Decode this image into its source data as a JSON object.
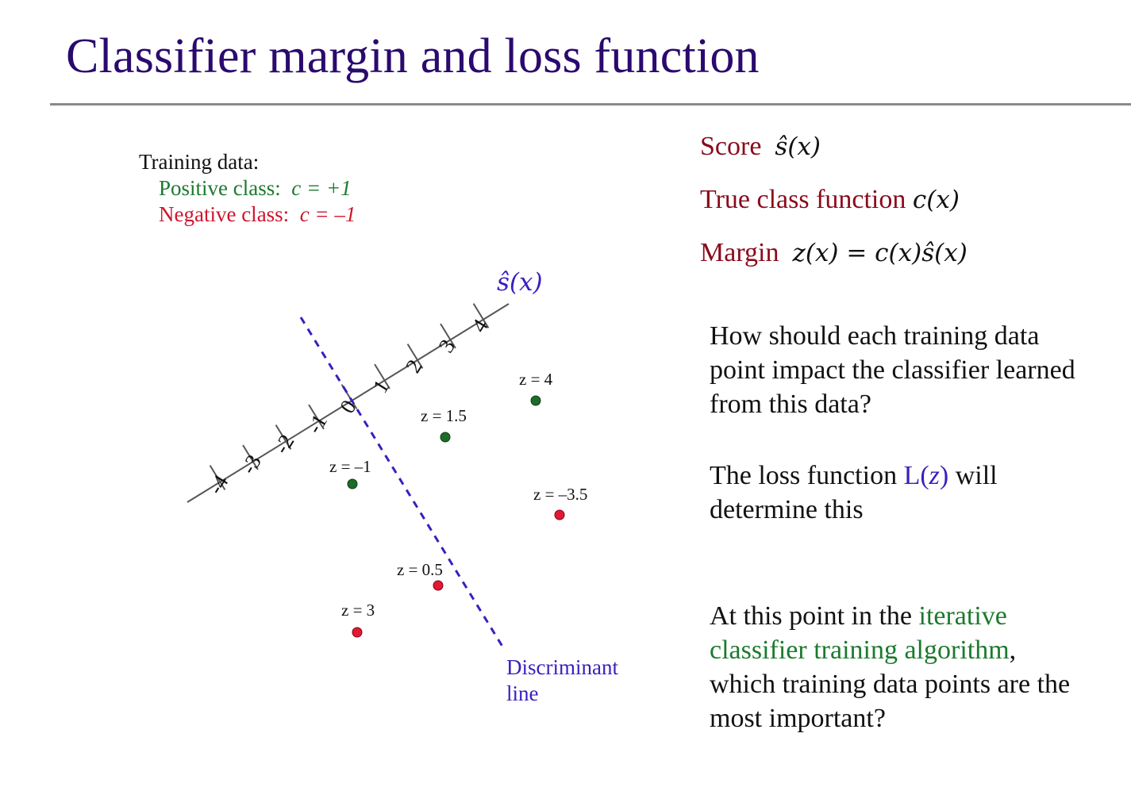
{
  "slide": {
    "title": "Classifier margin and loss function"
  },
  "legend": {
    "heading": "Training data:",
    "positive_label": "Positive class:",
    "positive_expr": "c = +1",
    "negative_label": "Negative class:",
    "negative_expr": "c = –1"
  },
  "definitions": {
    "score_label": "Score",
    "score_expr": "ŝ(x)",
    "true_class_label": "True class function",
    "true_class_expr": "c(x)",
    "margin_label": "Margin",
    "margin_expr": "z(x) = c(x)ŝ(x)"
  },
  "paragraphs": {
    "p1": [
      "How should each training data",
      "point impact the classifier learned",
      "from this data?"
    ],
    "p2_before": "The loss function ",
    "p2_L": "L(",
    "p2_z": "z",
    "p2_close": ")",
    "p2_after": " will",
    "p2_line2": "determine this",
    "p3_start": "At this point in the ",
    "p3_green_1": "iterative",
    "p3_green_2": "classifier training algorithm",
    "p3_comma": ",",
    "p3_line3": "which training data points are the",
    "p3_line4": "most important?"
  },
  "diagram": {
    "axis_label": "ŝ(x)",
    "axis_ticks": [
      "-4",
      "-3",
      "-2",
      "-1",
      "0",
      "1",
      "2",
      "3",
      "4"
    ],
    "discriminant_label": [
      "Discriminant",
      "line"
    ],
    "colors": {
      "positive": "#1e6b2a",
      "negative": "#e01a34",
      "dashed": "#3a1fbf"
    },
    "points": [
      {
        "class": "positive",
        "label": "z = 4"
      },
      {
        "class": "positive",
        "label": "z = 1.5"
      },
      {
        "class": "positive",
        "label": "z = –1"
      },
      {
        "class": "negative",
        "label": "z = –3.5"
      },
      {
        "class": "negative",
        "label": "z = 0.5"
      },
      {
        "class": "negative",
        "label": "z = 3"
      }
    ]
  }
}
